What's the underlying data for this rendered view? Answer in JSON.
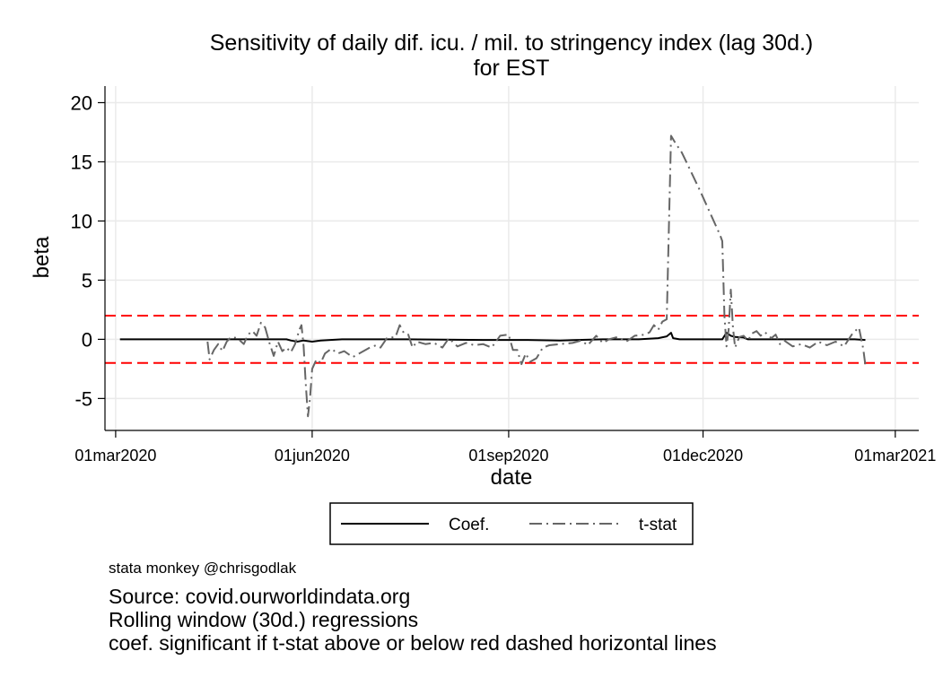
{
  "chart_data": {
    "type": "line",
    "title": [
      "Sensitivity of daily dif. icu. / mil. to stringency index (lag 30d.)",
      "for EST"
    ],
    "xlabel": "date",
    "ylabel": "beta",
    "x_ticks": [
      "2020-03-01",
      "2020-06-01",
      "2020-09-01",
      "2020-12-01",
      "2021-03-01"
    ],
    "x_tick_labels": [
      "01mar2020",
      "01jun2020",
      "01sep2020",
      "01dec2020",
      "01mar2021"
    ],
    "y_ticks": [
      -5,
      0,
      5,
      10,
      15,
      20
    ],
    "xlim": [
      "2020-02-25",
      "2021-03-12"
    ],
    "ylim": [
      -7.7,
      21.4
    ],
    "grid": true,
    "reference_lines": [
      {
        "y": 2,
        "color": "#ff0000",
        "style": "dashed"
      },
      {
        "y": -2,
        "color": "#ff0000",
        "style": "dashed"
      }
    ],
    "legend": {
      "placement": "bottom",
      "entries": [
        "Coef.",
        "t-stat"
      ]
    },
    "series": [
      {
        "name": "Coef.",
        "color": "#000000",
        "style": "solid",
        "points": [
          [
            "2020-03-03",
            0
          ],
          [
            "2020-04-01",
            0
          ],
          [
            "2020-05-10",
            0
          ],
          [
            "2020-05-20",
            0
          ],
          [
            "2020-05-22",
            -0.1
          ],
          [
            "2020-05-25",
            -0.2
          ],
          [
            "2020-05-28",
            -0.1
          ],
          [
            "2020-06-01",
            -0.2
          ],
          [
            "2020-06-05",
            -0.1
          ],
          [
            "2020-06-15",
            0
          ],
          [
            "2020-07-15",
            0
          ],
          [
            "2020-08-20",
            -0.05
          ],
          [
            "2020-09-10",
            -0.05
          ],
          [
            "2020-09-25",
            -0.1
          ],
          [
            "2020-10-15",
            0
          ],
          [
            "2020-11-01",
            0
          ],
          [
            "2020-11-10",
            0.1
          ],
          [
            "2020-11-14",
            0.25
          ],
          [
            "2020-11-16",
            0.55
          ],
          [
            "2020-11-17",
            0.1
          ],
          [
            "2020-11-20",
            0
          ],
          [
            "2020-12-10",
            0
          ],
          [
            "2020-12-12",
            0.55
          ],
          [
            "2020-12-14",
            0.3
          ],
          [
            "2020-12-16",
            0.2
          ],
          [
            "2020-12-20",
            0.15
          ],
          [
            "2020-12-22",
            0
          ],
          [
            "2021-01-15",
            0
          ],
          [
            "2021-02-10",
            0
          ],
          [
            "2021-02-15",
            -0.05
          ]
        ]
      },
      {
        "name": "t-stat",
        "color": "#666666",
        "style": "dash-dot",
        "points": [
          [
            "2020-04-13",
            -0.2
          ],
          [
            "2020-04-14",
            -1.7
          ],
          [
            "2020-04-16",
            -0.9
          ],
          [
            "2020-04-18",
            -0.4
          ],
          [
            "2020-04-20",
            -1.0
          ],
          [
            "2020-04-22",
            -0.2
          ],
          [
            "2020-04-24",
            0.2
          ],
          [
            "2020-04-27",
            0.1
          ],
          [
            "2020-04-30",
            -0.4
          ],
          [
            "2020-05-02",
            0.4
          ],
          [
            "2020-05-04",
            0.7
          ],
          [
            "2020-05-06",
            0.3
          ],
          [
            "2020-05-08",
            1.4
          ],
          [
            "2020-05-10",
            1.0
          ],
          [
            "2020-05-12",
            -0.3
          ],
          [
            "2020-05-14",
            -1.4
          ],
          [
            "2020-05-16",
            -0.2
          ],
          [
            "2020-05-18",
            -1.0
          ],
          [
            "2020-05-20",
            -0.7
          ],
          [
            "2020-05-22",
            -1.1
          ],
          [
            "2020-05-24",
            -0.4
          ],
          [
            "2020-05-26",
            0.8
          ],
          [
            "2020-05-27",
            1.2
          ],
          [
            "2020-05-28",
            -0.6
          ],
          [
            "2020-05-29",
            -3.8
          ],
          [
            "2020-05-30",
            -6.5
          ],
          [
            "2020-05-31",
            -5.0
          ],
          [
            "2020-06-01",
            -2.5
          ],
          [
            "2020-06-03",
            -1.7
          ],
          [
            "2020-06-05",
            -2.0
          ],
          [
            "2020-06-07",
            -1.2
          ],
          [
            "2020-06-10",
            -0.8
          ],
          [
            "2020-06-13",
            -1.2
          ],
          [
            "2020-06-16",
            -1.0
          ],
          [
            "2020-06-20",
            -1.5
          ],
          [
            "2020-06-24",
            -1.1
          ],
          [
            "2020-06-28",
            -0.7
          ],
          [
            "2020-07-01",
            -0.5
          ],
          [
            "2020-07-03",
            -0.7
          ],
          [
            "2020-07-06",
            0.1
          ],
          [
            "2020-07-10",
            0.2
          ],
          [
            "2020-07-12",
            1.2
          ],
          [
            "2020-07-14",
            0.5
          ],
          [
            "2020-07-16",
            0.4
          ],
          [
            "2020-07-18",
            -0.7
          ],
          [
            "2020-07-20",
            -0.2
          ],
          [
            "2020-07-24",
            -0.4
          ],
          [
            "2020-07-28",
            -0.3
          ],
          [
            "2020-08-01",
            -0.7
          ],
          [
            "2020-08-04",
            0.1
          ],
          [
            "2020-08-08",
            -0.6
          ],
          [
            "2020-08-12",
            -0.3
          ],
          [
            "2020-08-16",
            -0.5
          ],
          [
            "2020-08-20",
            -0.4
          ],
          [
            "2020-08-24",
            -0.7
          ],
          [
            "2020-08-28",
            0.3
          ],
          [
            "2020-09-01",
            0.4
          ],
          [
            "2020-09-03",
            -0.9
          ],
          [
            "2020-09-05",
            -0.9
          ],
          [
            "2020-09-07",
            -2.1
          ],
          [
            "2020-09-09",
            -1.2
          ],
          [
            "2020-09-11",
            -1.9
          ],
          [
            "2020-09-14",
            -1.6
          ],
          [
            "2020-09-17",
            -0.7
          ],
          [
            "2020-09-20",
            -0.5
          ],
          [
            "2020-09-25",
            -0.4
          ],
          [
            "2020-10-01",
            -0.3
          ],
          [
            "2020-10-05",
            -0.1
          ],
          [
            "2020-10-08",
            -0.5
          ],
          [
            "2020-10-12",
            0.3
          ],
          [
            "2020-10-15",
            -0.3
          ],
          [
            "2020-10-18",
            0.0
          ],
          [
            "2020-10-22",
            0.2
          ],
          [
            "2020-10-26",
            -0.2
          ],
          [
            "2020-10-30",
            0.3
          ],
          [
            "2020-11-04",
            0.4
          ],
          [
            "2020-11-06",
            0.6
          ],
          [
            "2020-11-08",
            1.2
          ],
          [
            "2020-11-10",
            0.8
          ],
          [
            "2020-11-12",
            1.5
          ],
          [
            "2020-11-14",
            1.7
          ],
          [
            "2020-11-16",
            17.2
          ],
          [
            "2020-11-18",
            16.6
          ],
          [
            "2020-11-21",
            15.8
          ],
          [
            "2020-11-25",
            14.3
          ],
          [
            "2020-11-30",
            12.4
          ],
          [
            "2020-12-05",
            10.4
          ],
          [
            "2020-12-09",
            8.8
          ],
          [
            "2020-12-10",
            8.3
          ],
          [
            "2020-12-11",
            2.0
          ],
          [
            "2020-12-12",
            -0.6
          ],
          [
            "2020-12-13",
            0.8
          ],
          [
            "2020-12-14",
            4.2
          ],
          [
            "2020-12-15",
            1.0
          ],
          [
            "2020-12-16",
            -0.7
          ],
          [
            "2020-12-18",
            0.2
          ],
          [
            "2020-12-20",
            0.3
          ],
          [
            "2020-12-22",
            -0.1
          ],
          [
            "2020-12-24",
            0.5
          ],
          [
            "2020-12-26",
            0.7
          ],
          [
            "2020-12-28",
            0.3
          ],
          [
            "2020-12-30",
            0.6
          ],
          [
            "2021-01-02",
            0.1
          ],
          [
            "2021-01-04",
            0.4
          ],
          [
            "2021-01-06",
            -0.4
          ],
          [
            "2021-01-08",
            -0.1
          ],
          [
            "2021-01-12",
            -0.6
          ],
          [
            "2021-01-16",
            -0.4
          ],
          [
            "2021-01-20",
            -0.7
          ],
          [
            "2021-01-24",
            -0.2
          ],
          [
            "2021-01-28",
            -0.5
          ],
          [
            "2021-02-01",
            -0.2
          ],
          [
            "2021-02-05",
            -0.6
          ],
          [
            "2021-02-09",
            0.5
          ],
          [
            "2021-02-12",
            1.0
          ],
          [
            "2021-02-14",
            -0.8
          ],
          [
            "2021-02-15",
            -2.2
          ]
        ]
      }
    ]
  },
  "notes": {
    "credit": "stata monkey @chrisgodlak",
    "lines": [
      "Source: covid.ourworldindata.org",
      "Rolling window (30d.) regressions",
      "coef. significant if t-stat above or below red dashed horizontal lines"
    ]
  }
}
